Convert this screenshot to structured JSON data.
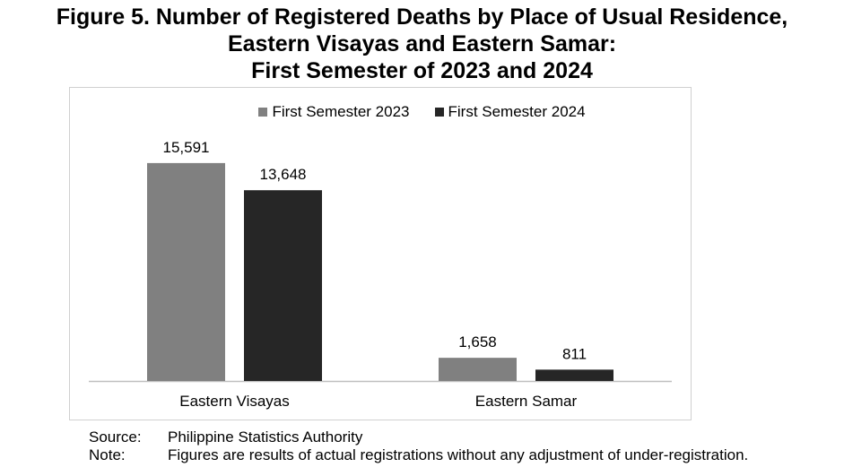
{
  "title_lines": [
    "Figure 5. Number of Registered Deaths by Place of Usual Residence,",
    "Eastern Visayas and Eastern Samar:",
    "First Semester of 2023 and 2024"
  ],
  "chart_data": {
    "type": "bar",
    "title": "Figure 5. Number of Registered Deaths by Place of Usual Residence, Eastern Visayas and Eastern Samar: First Semester of 2023 and 2024",
    "categories": [
      "Eastern Visayas",
      "Eastern Samar"
    ],
    "series": [
      {
        "name": "First Semester 2023",
        "values": [
          15591,
          1658
        ],
        "labels": [
          "15,591",
          "1,658"
        ],
        "color": "#808080"
      },
      {
        "name": "First Semester 2024",
        "values": [
          13648,
          811
        ],
        "labels": [
          "13,648",
          "811"
        ],
        "color": "#262626"
      }
    ],
    "ylim": [
      0,
      17000
    ],
    "grid": false,
    "legend": "top-center",
    "xlabel": "",
    "ylabel": ""
  },
  "footer": {
    "source_key": "Source:",
    "source_value": "Philippine Statistics Authority",
    "note_key": "Note:",
    "note_value": "Figures are results of actual registrations without any adjustment of under-registration."
  }
}
